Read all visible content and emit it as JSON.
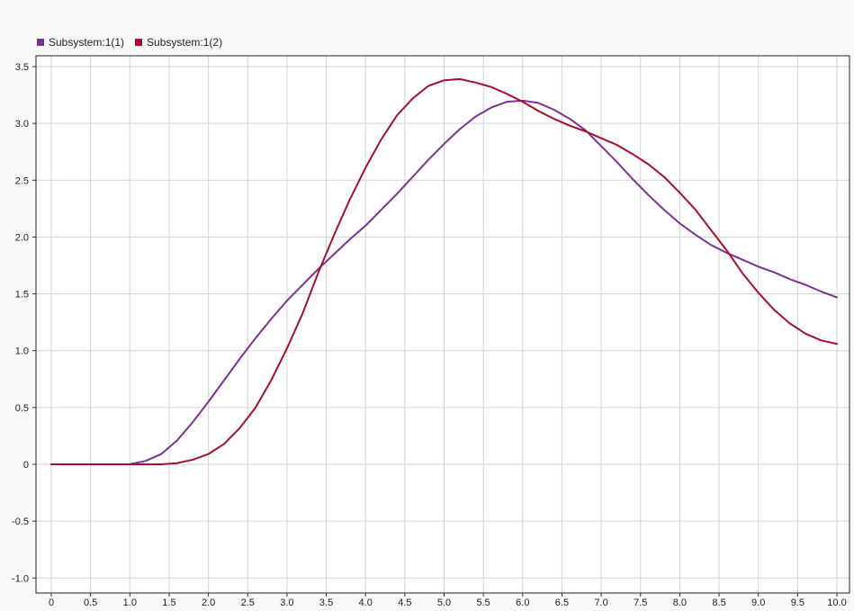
{
  "chart_data": {
    "type": "line",
    "title": "",
    "xlabel": "",
    "ylabel": "",
    "xlim": [
      0,
      10
    ],
    "ylim": [
      -1.1,
      3.6
    ],
    "grid": true,
    "legend_placement": "top-left",
    "xticks": [
      0,
      0.5,
      1.0,
      1.5,
      2.0,
      2.5,
      3.0,
      3.5,
      4.0,
      4.5,
      5.0,
      5.5,
      6.0,
      6.5,
      7.0,
      7.5,
      8.0,
      8.5,
      9.0,
      9.5,
      10.0
    ],
    "xtick_labels": [
      "0",
      "0.5",
      "1.0",
      "1.5",
      "2.0",
      "2.5",
      "3.0",
      "3.5",
      "4.0",
      "4.5",
      "5.0",
      "5.5",
      "6.0",
      "6.5",
      "7.0",
      "7.5",
      "8.0",
      "8.5",
      "9.0",
      "9.5",
      "10.0"
    ],
    "yticks": [
      -1.0,
      -0.5,
      0,
      0.5,
      1.0,
      1.5,
      2.0,
      2.5,
      3.0,
      3.5
    ],
    "ytick_labels": [
      "-1.0",
      "-0.5",
      "0",
      "0.5",
      "1.0",
      "1.5",
      "2.0",
      "2.5",
      "3.0",
      "3.5"
    ],
    "series": [
      {
        "name": "Subsystem:1(1)",
        "color": "#7b3294",
        "x": [
          0,
          0.5,
          1.0,
          1.2,
          1.4,
          1.6,
          1.8,
          2.0,
          2.2,
          2.4,
          2.6,
          2.8,
          3.0,
          3.2,
          3.4,
          3.6,
          3.8,
          4.0,
          4.2,
          4.4,
          4.6,
          4.8,
          5.0,
          5.2,
          5.4,
          5.6,
          5.8,
          6.0,
          6.2,
          6.4,
          6.6,
          6.8,
          7.0,
          7.2,
          7.4,
          7.6,
          7.8,
          8.0,
          8.2,
          8.4,
          8.6,
          8.8,
          9.0,
          9.2,
          9.4,
          9.6,
          9.8,
          10.0
        ],
        "values": [
          0,
          0,
          0,
          0.03,
          0.09,
          0.21,
          0.37,
          0.55,
          0.74,
          0.93,
          1.11,
          1.28,
          1.44,
          1.58,
          1.72,
          1.85,
          1.98,
          2.1,
          2.24,
          2.38,
          2.53,
          2.68,
          2.82,
          2.95,
          3.06,
          3.14,
          3.19,
          3.2,
          3.18,
          3.12,
          3.04,
          2.94,
          2.8,
          2.66,
          2.51,
          2.37,
          2.24,
          2.12,
          2.02,
          1.93,
          1.86,
          1.8,
          1.74,
          1.69,
          1.63,
          1.58,
          1.52,
          1.47
        ]
      },
      {
        "name": "Subsystem:1(2)",
        "color": "#a50f2d",
        "x": [
          0,
          0.5,
          1.0,
          1.2,
          1.4,
          1.6,
          1.8,
          2.0,
          2.2,
          2.4,
          2.6,
          2.8,
          3.0,
          3.2,
          3.4,
          3.6,
          3.8,
          4.0,
          4.2,
          4.4,
          4.6,
          4.8,
          5.0,
          5.2,
          5.4,
          5.6,
          5.8,
          6.0,
          6.2,
          6.4,
          6.6,
          6.8,
          7.0,
          7.2,
          7.4,
          7.6,
          7.8,
          8.0,
          8.2,
          8.4,
          8.6,
          8.8,
          9.0,
          9.2,
          9.4,
          9.6,
          9.8,
          10.0
        ],
        "values": [
          0,
          0,
          0,
          0,
          0,
          0.01,
          0.04,
          0.09,
          0.18,
          0.32,
          0.5,
          0.74,
          1.02,
          1.33,
          1.69,
          2.02,
          2.33,
          2.61,
          2.86,
          3.07,
          3.22,
          3.33,
          3.38,
          3.39,
          3.36,
          3.32,
          3.26,
          3.19,
          3.11,
          3.04,
          2.98,
          2.93,
          2.87,
          2.81,
          2.73,
          2.64,
          2.53,
          2.39,
          2.24,
          2.06,
          1.88,
          1.68,
          1.51,
          1.36,
          1.24,
          1.15,
          1.09,
          1.06
        ]
      }
    ]
  }
}
